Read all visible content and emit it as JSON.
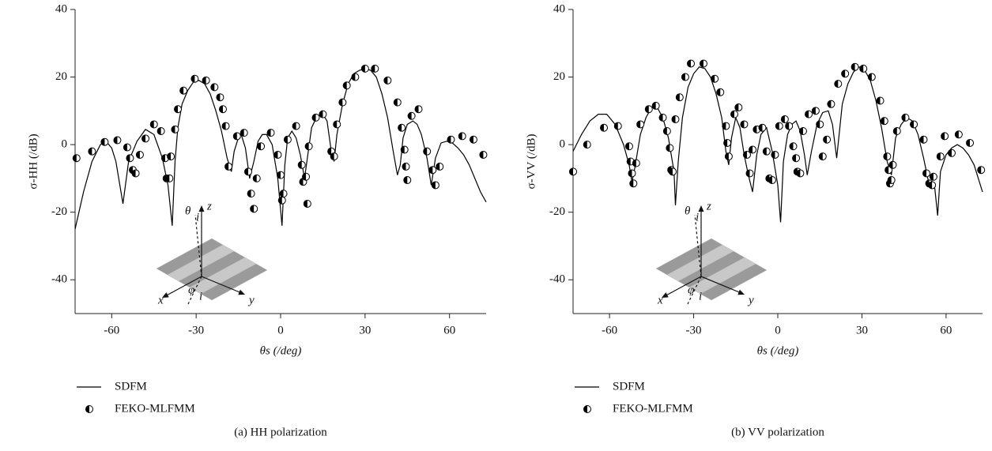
{
  "chart_data": [
    {
      "type": "line",
      "xlabel": "θs (/deg)",
      "ylabel": "σ-HH (/dB)",
      "caption": "(a)  HH polarization",
      "xlim": [
        -73,
        73
      ],
      "ylim": [
        -50,
        40
      ],
      "xticks": [
        -60,
        -30,
        0,
        30,
        60
      ],
      "yticks": [
        -40,
        -20,
        0,
        20,
        40
      ],
      "annotations": [
        "θ",
        "i",
        "z",
        "φ",
        "i",
        "x",
        "y"
      ],
      "series": [
        {
          "name": "SDFM",
          "type": "line",
          "color": "#000000",
          "x": [
            -73,
            -70,
            -67,
            -64,
            -62,
            -60,
            -58.5,
            -57.5,
            -56,
            -54,
            -51,
            -48,
            -45,
            -42,
            -40,
            -38.5,
            -37.5,
            -36.5,
            -35,
            -33,
            -31,
            -29,
            -27,
            -25,
            -23,
            -21,
            -19,
            -17.5,
            -16.5,
            -15,
            -14,
            -12.5,
            -11,
            -9.5,
            -8,
            -6.5,
            -5,
            -3,
            -1,
            0.5,
            1.5,
            2.5,
            4,
            5.5,
            7,
            8.5,
            9.5,
            11,
            13,
            15,
            16.5,
            18,
            19,
            20,
            22,
            24,
            26,
            28,
            30,
            32,
            34,
            36,
            38,
            40,
            41.5,
            42.5,
            43.5,
            45,
            47,
            48.5,
            50,
            52,
            53.5,
            55,
            57,
            59,
            61,
            63,
            65,
            67,
            69,
            71,
            73
          ],
          "values": [
            -25,
            -14,
            -5,
            0,
            1,
            -1,
            -5,
            -10,
            -17.5,
            -5,
            1,
            4.5,
            3,
            -4,
            -12,
            -24,
            -5,
            5,
            12,
            16,
            18.5,
            19,
            18,
            15,
            10,
            4,
            -4,
            -8,
            -2,
            2,
            3,
            -1,
            -10,
            -5,
            1,
            3,
            3,
            0,
            -10,
            -24,
            -6,
            2,
            4,
            2,
            -3,
            -10,
            -4,
            5,
            8.5,
            9,
            7,
            -2,
            -5,
            3,
            12,
            18,
            21,
            22,
            22.5,
            22,
            20,
            15,
            8,
            -2,
            -9,
            -6,
            2,
            6,
            7,
            6,
            3,
            -4,
            -12,
            -4,
            0.5,
            1,
            0.5,
            -1,
            -3,
            -6,
            -10,
            -14,
            -17
          ]
        },
        {
          "name": "FEKO-MLFMM",
          "type": "scatter",
          "color": "#000000",
          "x": [
            -72.5,
            -67,
            -62.5,
            -58,
            -54.5,
            -53.5,
            -52.5,
            -51.5,
            -50,
            -48,
            -45,
            -42.5,
            -41,
            -40.5,
            -39.5,
            -39,
            -37.5,
            -36.5,
            -34.5,
            -30.5,
            -26.5,
            -23.5,
            -21.5,
            -20.5,
            -19.5,
            -18.5,
            -15.5,
            -13,
            -11.5,
            -10.5,
            -9.5,
            -8.5,
            -7,
            -3.5,
            -1,
            0,
            0.5,
            1,
            2.5,
            5.5,
            7.5,
            8,
            9,
            9.5,
            10,
            12.5,
            15,
            18,
            19,
            20,
            22,
            23.5,
            26.5,
            30,
            33.5,
            38,
            41.5,
            43,
            44,
            44.5,
            45,
            46.5,
            49,
            52,
            54,
            55,
            56.5,
            60.5,
            64.5,
            68.5,
            72
          ],
          "values": [
            -4,
            -2,
            0.8,
            1.3,
            -0.8,
            -4,
            -7.5,
            -8.5,
            -3,
            1.8,
            6,
            4,
            -4,
            -10,
            -10,
            -3.5,
            4.5,
            10.5,
            16,
            19.5,
            19,
            17,
            14,
            10.5,
            5.5,
            -6.5,
            2.5,
            3.5,
            -8,
            -14.5,
            -19,
            -10,
            -0.5,
            3.5,
            -3,
            -9,
            -16.5,
            -14.5,
            1.5,
            5.5,
            -6,
            -11,
            -9.5,
            -17.5,
            -0.5,
            8,
            9,
            -2,
            -3.5,
            6,
            12.5,
            17.5,
            20,
            22.5,
            22.5,
            19,
            12.5,
            5,
            -1.5,
            -6.5,
            -10.5,
            8.5,
            10.5,
            -2,
            -7.5,
            -12,
            -6.5,
            1.5,
            2.5,
            1.5,
            -3
          ]
        }
      ]
    },
    {
      "type": "line",
      "xlabel": "θs (/deg)",
      "ylabel": "σ-VV (/dB)",
      "caption": "(b)  VV polarization",
      "xlim": [
        -73,
        73
      ],
      "ylim": [
        -50,
        40
      ],
      "xticks": [
        -60,
        -30,
        0,
        30,
        60
      ],
      "yticks": [
        -40,
        -20,
        0,
        20,
        40
      ],
      "annotations": [
        "θ",
        "i",
        "z",
        "φ",
        "i",
        "x",
        "y"
      ],
      "series": [
        {
          "name": "SDFM",
          "type": "line",
          "color": "#000000",
          "x": [
            -73,
            -70,
            -67,
            -64,
            -61,
            -58,
            -55,
            -53,
            -52,
            -51,
            -49,
            -47,
            -45,
            -43,
            -41,
            -39,
            -37,
            -36.5,
            -35.5,
            -34,
            -32,
            -30,
            -28,
            -26,
            -24,
            -22,
            -20,
            -18.5,
            -17.5,
            -16.5,
            -15,
            -13.5,
            -12,
            -10.5,
            -9,
            -7.5,
            -6,
            -4,
            -2,
            0,
            1,
            2,
            3.5,
            5,
            6.5,
            8,
            9.5,
            10.5,
            12,
            14,
            16,
            18,
            19.5,
            21,
            23,
            25,
            27,
            29,
            31,
            33,
            35,
            37,
            39,
            40.5,
            42,
            44,
            46,
            48,
            50,
            52,
            54,
            56,
            57,
            58,
            60,
            62,
            64,
            66,
            68,
            70,
            73
          ],
          "values": [
            -2,
            3,
            7,
            9,
            9,
            6,
            0,
            -6,
            -11,
            -7,
            3,
            8,
            11,
            11,
            8,
            2,
            -8,
            -18,
            -5,
            8,
            17,
            21,
            23,
            22.5,
            20,
            15,
            8,
            -2,
            -6,
            2,
            8,
            5,
            -3,
            -9,
            -14,
            -3,
            3,
            5,
            -2,
            -12,
            -23,
            -5,
            3,
            6,
            7,
            4,
            -3,
            -9,
            -2,
            6,
            9.5,
            10,
            6,
            -4,
            12,
            18,
            21.5,
            23,
            22,
            19,
            13,
            5,
            -5,
            -9,
            2,
            6,
            8,
            7,
            3,
            -4,
            -12,
            -13,
            -21,
            -8,
            -3,
            -1,
            0,
            -1,
            -3,
            -6,
            -14
          ]
        },
        {
          "name": "FEKO-MLFMM",
          "type": "scatter",
          "color": "#000000",
          "x": [
            -73,
            -68,
            -62,
            -57,
            -53,
            -52.5,
            -52,
            -51.5,
            -50.5,
            -49,
            -46,
            -43.5,
            -41,
            -39.5,
            -38.5,
            -38,
            -37.5,
            -36.5,
            -35,
            -33,
            -31,
            -26.5,
            -22.5,
            -20.5,
            -18.5,
            -18,
            -17.5,
            -15.5,
            -14,
            -12,
            -11,
            -10,
            -9,
            -7.5,
            -5.5,
            -4,
            -3,
            -2,
            -1,
            0.5,
            2.5,
            4,
            5.5,
            6.5,
            7,
            8,
            9,
            11,
            13.5,
            15,
            16,
            17.5,
            19,
            21.5,
            24,
            27.5,
            30.5,
            33.5,
            36.5,
            38,
            39,
            39.5,
            40,
            40.5,
            41,
            42.5,
            45.5,
            48.5,
            52,
            53,
            54,
            55,
            55.5,
            58,
            59.5,
            62,
            64.5,
            68.5,
            72.5
          ],
          "values": [
            -8,
            0,
            5,
            5.5,
            -0.5,
            -5,
            -8.5,
            -11.5,
            -5.5,
            6,
            10.5,
            11.5,
            8,
            4,
            -1,
            -7.5,
            -8,
            7.5,
            14,
            20,
            24,
            24,
            19.5,
            15.5,
            5.5,
            0.5,
            -3.5,
            9,
            11,
            6,
            -3,
            -8.5,
            -1.5,
            4.5,
            5,
            -2,
            -10,
            -10.5,
            -3,
            5.5,
            7.5,
            5.5,
            -0.5,
            -4,
            -8,
            -8.5,
            4,
            9,
            10,
            6,
            -3.5,
            1.5,
            12,
            18,
            21,
            23,
            22.5,
            20,
            13,
            7,
            -3.5,
            -7.5,
            -11.5,
            -10.5,
            -6,
            4,
            8,
            6,
            1.5,
            -8.5,
            -11.5,
            -12,
            -9.5,
            -3.5,
            2.5,
            -2.5,
            3,
            0.5,
            -7.5
          ]
        }
      ]
    }
  ]
}
